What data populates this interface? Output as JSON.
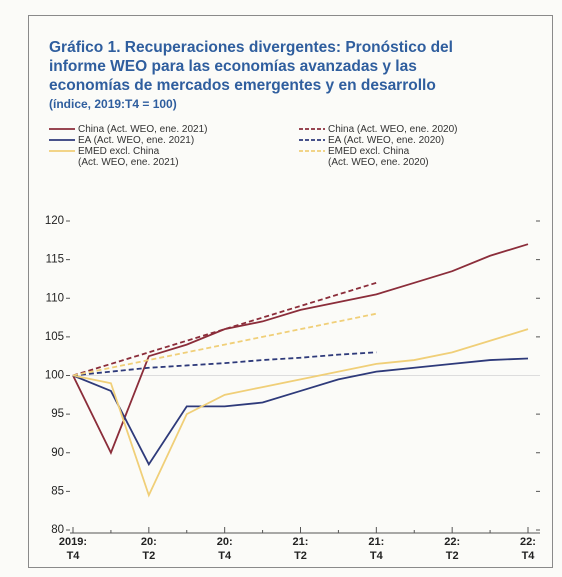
{
  "chart_data": {
    "type": "line",
    "title": "Gráfico 1. Recuperaciones divergentes: Pronóstico del informe WEO para las economías avanzadas y las economías de mercados emergentes y en desarrollo",
    "subtitle": "(índice, 2019:T4 = 100)",
    "categories": [
      "2019:\nT4",
      null,
      "20:\nT2",
      null,
      "20:\nT4",
      null,
      "21:\nT2",
      null,
      "21:\nT4",
      null,
      "22:\nT2",
      null,
      "22:\nT4"
    ],
    "series": [
      {
        "name": "China (Act. WEO, ene. 2021)",
        "color": "#8b2d3a",
        "dashed": false,
        "values": [
          100,
          90,
          102.5,
          104,
          106,
          107,
          108.5,
          109.5,
          110.5,
          112,
          113.5,
          115.5,
          117
        ]
      },
      {
        "name": "EA (Act. WEO, ene. 2021)",
        "color": "#2e3a7a",
        "dashed": false,
        "values": [
          100,
          98,
          88.5,
          96,
          96,
          96.5,
          98,
          99.5,
          100.5,
          101,
          101.5,
          102,
          102.2
        ]
      },
      {
        "name": "EMED excl. China\n(Act. WEO, ene. 2021)",
        "color": "#f0cf78",
        "dashed": false,
        "values": [
          100,
          99,
          84.5,
          95,
          97.5,
          98.5,
          99.5,
          100.5,
          101.5,
          102,
          103,
          104.5,
          106
        ]
      },
      {
        "name": "China (Act. WEO, ene. 2020)",
        "color": "#8b2d3a",
        "dashed": true,
        "values": [
          100,
          101.5,
          103,
          104.5,
          106,
          107.5,
          109,
          110.5,
          112,
          null,
          null,
          null,
          null
        ]
      },
      {
        "name": "EA (Act. WEO, ene. 2020)",
        "color": "#2e3a7a",
        "dashed": true,
        "values": [
          100,
          100.5,
          101,
          101.3,
          101.6,
          102,
          102.3,
          102.7,
          103,
          null,
          null,
          null,
          null
        ]
      },
      {
        "name": "EMED excl. China\n(Act. WEO, ene. 2020)",
        "color": "#f0cf78",
        "dashed": true,
        "values": [
          100,
          101,
          102,
          103,
          104,
          105,
          106,
          107,
          108,
          null,
          null,
          null,
          null
        ]
      }
    ],
    "ylim": [
      80,
      120
    ],
    "yticks": [
      80,
      85,
      90,
      95,
      100,
      105,
      110,
      115,
      120
    ]
  }
}
